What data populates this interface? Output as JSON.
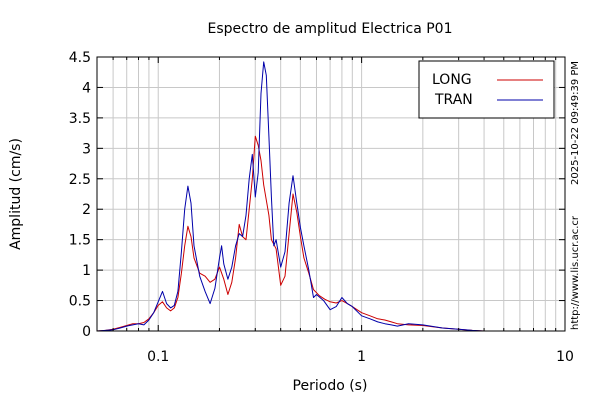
{
  "chart_data": {
    "type": "line",
    "title": "Espectro de amplitud Electrica P01",
    "xlabel": "Periodo (s)",
    "ylabel": "Amplitud (cm/s)",
    "x_scale": "log",
    "xlim": [
      0.05,
      10
    ],
    "ylim": [
      0,
      4.5
    ],
    "x_ticks": [
      {
        "value": 0.1,
        "label": "0.1"
      },
      {
        "value": 1,
        "label": "1"
      },
      {
        "value": 10,
        "label": "10"
      }
    ],
    "y_ticks": [
      {
        "value": 0,
        "label": "0"
      },
      {
        "value": 0.5,
        "label": "0.5"
      },
      {
        "value": 1,
        "label": "1"
      },
      {
        "value": 1.5,
        "label": "1.5"
      },
      {
        "value": 2,
        "label": "2"
      },
      {
        "value": 2.5,
        "label": "2.5"
      },
      {
        "value": 3,
        "label": "3"
      },
      {
        "value": 3.5,
        "label": "3.5"
      },
      {
        "value": 4,
        "label": "4"
      },
      {
        "value": 4.5,
        "label": "4.5"
      }
    ],
    "grid": true,
    "legend_position": "top-right",
    "series": [
      {
        "name": "LONG",
        "color": "#cc0000",
        "points": [
          [
            0.05,
            0.0
          ],
          [
            0.055,
            0.01
          ],
          [
            0.06,
            0.03
          ],
          [
            0.065,
            0.06
          ],
          [
            0.07,
            0.09
          ],
          [
            0.075,
            0.12
          ],
          [
            0.08,
            0.12
          ],
          [
            0.085,
            0.14
          ],
          [
            0.09,
            0.2
          ],
          [
            0.095,
            0.3
          ],
          [
            0.1,
            0.42
          ],
          [
            0.105,
            0.48
          ],
          [
            0.11,
            0.38
          ],
          [
            0.115,
            0.33
          ],
          [
            0.12,
            0.38
          ],
          [
            0.125,
            0.55
          ],
          [
            0.13,
            0.95
          ],
          [
            0.135,
            1.4
          ],
          [
            0.14,
            1.72
          ],
          [
            0.145,
            1.55
          ],
          [
            0.15,
            1.2
          ],
          [
            0.16,
            0.95
          ],
          [
            0.17,
            0.9
          ],
          [
            0.18,
            0.8
          ],
          [
            0.19,
            0.85
          ],
          [
            0.2,
            1.05
          ],
          [
            0.21,
            0.85
          ],
          [
            0.22,
            0.6
          ],
          [
            0.23,
            0.8
          ],
          [
            0.24,
            1.2
          ],
          [
            0.25,
            1.75
          ],
          [
            0.26,
            1.55
          ],
          [
            0.27,
            1.5
          ],
          [
            0.28,
            2.0
          ],
          [
            0.29,
            2.5
          ],
          [
            0.3,
            3.2
          ],
          [
            0.31,
            3.05
          ],
          [
            0.32,
            2.8
          ],
          [
            0.33,
            2.4
          ],
          [
            0.34,
            2.15
          ],
          [
            0.35,
            1.9
          ],
          [
            0.36,
            1.5
          ],
          [
            0.38,
            1.35
          ],
          [
            0.4,
            0.75
          ],
          [
            0.42,
            0.9
          ],
          [
            0.44,
            1.6
          ],
          [
            0.46,
            2.25
          ],
          [
            0.48,
            1.95
          ],
          [
            0.5,
            1.55
          ],
          [
            0.52,
            1.2
          ],
          [
            0.55,
            0.95
          ],
          [
            0.58,
            0.68
          ],
          [
            0.62,
            0.58
          ],
          [
            0.66,
            0.52
          ],
          [
            0.7,
            0.48
          ],
          [
            0.75,
            0.46
          ],
          [
            0.8,
            0.5
          ],
          [
            0.85,
            0.45
          ],
          [
            0.9,
            0.4
          ],
          [
            1.0,
            0.3
          ],
          [
            1.1,
            0.25
          ],
          [
            1.2,
            0.2
          ],
          [
            1.3,
            0.18
          ],
          [
            1.4,
            0.15
          ],
          [
            1.5,
            0.12
          ],
          [
            1.7,
            0.1
          ],
          [
            2.0,
            0.09
          ],
          [
            2.5,
            0.05
          ],
          [
            3.0,
            0.03
          ],
          [
            3.5,
            0.01
          ],
          [
            4.0,
            0.0
          ],
          [
            10.0,
            0.0
          ]
        ]
      },
      {
        "name": "TRAN",
        "color": "#0000aa",
        "points": [
          [
            0.05,
            0.0
          ],
          [
            0.055,
            0.01
          ],
          [
            0.06,
            0.02
          ],
          [
            0.065,
            0.05
          ],
          [
            0.07,
            0.08
          ],
          [
            0.075,
            0.1
          ],
          [
            0.08,
            0.12
          ],
          [
            0.085,
            0.1
          ],
          [
            0.09,
            0.18
          ],
          [
            0.095,
            0.3
          ],
          [
            0.1,
            0.48
          ],
          [
            0.105,
            0.65
          ],
          [
            0.11,
            0.45
          ],
          [
            0.115,
            0.38
          ],
          [
            0.12,
            0.42
          ],
          [
            0.125,
            0.65
          ],
          [
            0.13,
            1.3
          ],
          [
            0.135,
            2.0
          ],
          [
            0.14,
            2.38
          ],
          [
            0.145,
            2.1
          ],
          [
            0.15,
            1.4
          ],
          [
            0.16,
            0.9
          ],
          [
            0.17,
            0.65
          ],
          [
            0.18,
            0.45
          ],
          [
            0.19,
            0.7
          ],
          [
            0.2,
            1.2
          ],
          [
            0.205,
            1.4
          ],
          [
            0.21,
            1.1
          ],
          [
            0.22,
            0.85
          ],
          [
            0.23,
            1.05
          ],
          [
            0.24,
            1.4
          ],
          [
            0.25,
            1.6
          ],
          [
            0.26,
            1.55
          ],
          [
            0.27,
            1.9
          ],
          [
            0.28,
            2.5
          ],
          [
            0.29,
            2.9
          ],
          [
            0.3,
            2.2
          ],
          [
            0.31,
            2.6
          ],
          [
            0.32,
            3.9
          ],
          [
            0.33,
            4.42
          ],
          [
            0.34,
            4.2
          ],
          [
            0.35,
            3.2
          ],
          [
            0.36,
            2.2
          ],
          [
            0.37,
            1.4
          ],
          [
            0.38,
            1.5
          ],
          [
            0.4,
            1.05
          ],
          [
            0.42,
            1.3
          ],
          [
            0.44,
            2.1
          ],
          [
            0.46,
            2.55
          ],
          [
            0.48,
            2.1
          ],
          [
            0.5,
            1.7
          ],
          [
            0.52,
            1.4
          ],
          [
            0.55,
            1.0
          ],
          [
            0.58,
            0.55
          ],
          [
            0.6,
            0.6
          ],
          [
            0.65,
            0.5
          ],
          [
            0.7,
            0.35
          ],
          [
            0.75,
            0.4
          ],
          [
            0.8,
            0.55
          ],
          [
            0.85,
            0.45
          ],
          [
            0.9,
            0.4
          ],
          [
            1.0,
            0.25
          ],
          [
            1.1,
            0.2
          ],
          [
            1.2,
            0.15
          ],
          [
            1.3,
            0.12
          ],
          [
            1.4,
            0.1
          ],
          [
            1.5,
            0.08
          ],
          [
            1.7,
            0.12
          ],
          [
            2.0,
            0.1
          ],
          [
            2.5,
            0.05
          ],
          [
            3.0,
            0.03
          ],
          [
            3.5,
            0.01
          ],
          [
            4.0,
            0.0
          ],
          [
            10.0,
            0.0
          ]
        ]
      }
    ]
  },
  "side_text": {
    "timestamp": "2025-10-22 09:49:39 PM",
    "url": "http://www.lis.ucr.ac.cr"
  }
}
